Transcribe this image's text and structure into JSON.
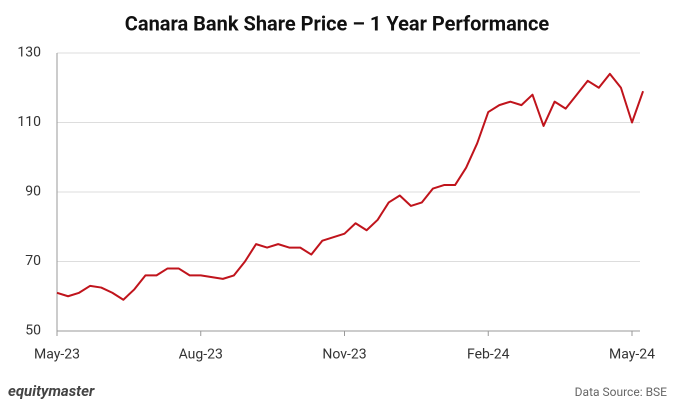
{
  "chart_data": {
    "type": "line",
    "title": "Canara Bank Share Price – 1 Year Performance",
    "categories": [
      "May-23",
      null,
      null,
      null,
      null,
      null,
      null,
      null,
      null,
      null,
      null,
      null,
      null,
      "Aug-23",
      null,
      null,
      null,
      null,
      null,
      null,
      null,
      null,
      null,
      null,
      null,
      null,
      "Nov-23",
      null,
      null,
      null,
      null,
      null,
      null,
      null,
      null,
      null,
      null,
      null,
      null,
      "Feb-24",
      null,
      null,
      null,
      null,
      null,
      null,
      null,
      null,
      null,
      null,
      null,
      null,
      "May-24",
      null
    ],
    "series": [
      {
        "name": "Canara Bank",
        "color": "#c0141c",
        "values": [
          61,
          60,
          61,
          63,
          62.5,
          61,
          59,
          62,
          66,
          66,
          68,
          68,
          66,
          66,
          65.5,
          65,
          66,
          70,
          75,
          74,
          75,
          74,
          74,
          72,
          76,
          77,
          78,
          81,
          79,
          82,
          87,
          89,
          86,
          87,
          91,
          92,
          92,
          97,
          104,
          113,
          115,
          116,
          115,
          118,
          109,
          116,
          114,
          118,
          122,
          120,
          124,
          120,
          110,
          119
        ]
      }
    ],
    "ylim": [
      50,
      130
    ],
    "yticks": [
      50,
      70,
      90,
      110,
      130
    ],
    "grid": true,
    "brand": "equitymaster",
    "source": "Data Source: BSE"
  }
}
